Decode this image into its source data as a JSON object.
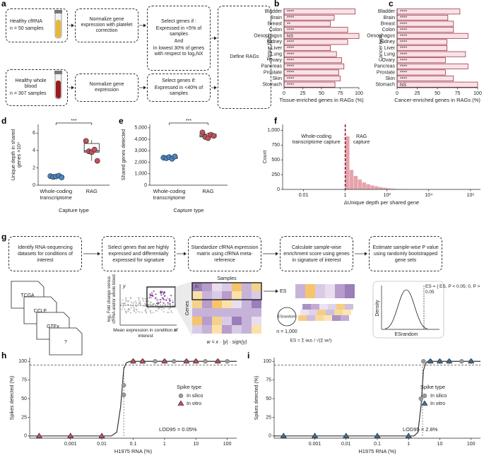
{
  "diagram_a": {
    "label": "a",
    "boxes": [
      {
        "lines": [
          "Healthy cfRNA",
          "n = 50 samples"
        ]
      },
      {
        "lines": [
          "Normalize gene expression with platelet correction"
        ]
      },
      {
        "lines": [
          "Select genes if :",
          "Expressed in <5% of samples",
          "And",
          "In lowest 30% of genes with respect to log₂NX"
        ]
      },
      {
        "lines": [
          "Define RAGs"
        ]
      },
      {
        "lines": [
          "Healthy whole blood",
          "n = 307 samples"
        ]
      },
      {
        "lines": [
          "Normalize gene expression"
        ]
      },
      {
        "lines": [
          "Select genes if:",
          "Expressed in <40% of samples"
        ]
      }
    ]
  },
  "diagram_g": {
    "label": "g",
    "steps": [
      "Identify RNA-sequencing datasets for conditions of interest",
      "Select genes that are highly expressed and differentially expressed for signature",
      "Standardize cfRNA expression matrix using cfRNA meta-reference",
      "Calculate sample-wise enrichment score using genes in signature of interest",
      "Estimate sample-wise P value using randomly bootstrapped gene sets"
    ],
    "datasets": [
      "TCGA",
      "CCLE",
      "GTEx",
      "?"
    ],
    "scatter_ylabel": "log₂ Fold change versus cfRNA and/or whole blood",
    "scatter_xlabel": "Mean expression in condition of interest",
    "y": "y",
    "x": "x",
    "samples": "Samples",
    "genes": "Genes",
    "zs": "zₛ",
    "weight": "w = x · |y| · sign(y)",
    "es": "ES",
    "es_random": "ESrandom",
    "n": "n = 1,000",
    "es_formula": "ES = Σ wᵢzᵢ / √(Σ wᵢ²)",
    "es_rule": "ES = { ES, P < 0.05; 0, P > 0.05",
    "density": "Density",
    "density_x": "ESrandom"
  },
  "chart_data": [
    {
      "label": "b",
      "type": "hbar",
      "categories": [
        "Bladder",
        "Brain",
        "Breast",
        "Colon",
        "Oesophagus",
        "Kidney",
        "Liver",
        "Lung",
        "Ovary",
        "Pancreas",
        "Prostate",
        "Skin",
        "Stomach"
      ],
      "values": [
        95,
        67,
        62,
        85,
        100,
        85,
        62,
        70,
        77,
        80,
        73,
        75,
        68
      ],
      "annotations": [
        "****",
        "****",
        "**",
        "****",
        "NS",
        "****",
        "****",
        "****",
        "****",
        "****",
        "****",
        "****",
        "****"
      ],
      "color": "#fbe1e6",
      "stroke": "#8c2233",
      "xlim": [
        0,
        100
      ],
      "xticks": [
        0,
        25,
        50,
        75,
        100
      ],
      "xlabel": "Tissue-enriched genes in RAGs (%)",
      "ylabel": "Tissue type"
    },
    {
      "label": "c",
      "type": "hbar",
      "categories": [
        "Bladder",
        "Brain",
        "Breast",
        "Colon",
        "Oesophagus",
        "Kidney",
        "Liver",
        "Lung",
        "Ovary",
        "Pancreas",
        "Prostate",
        "Skin",
        "Stomach"
      ],
      "values": [
        78,
        63,
        70,
        70,
        88,
        62,
        62,
        85,
        60,
        88,
        60,
        70,
        100
      ],
      "annotations": [
        "****",
        "****",
        "****",
        "****",
        "****",
        "****",
        "****",
        "****",
        "****",
        "****",
        "****",
        "****",
        "NS"
      ],
      "color": "#fbe1e6",
      "stroke": "#8c2233",
      "xlim": [
        0,
        100
      ],
      "xticks": [
        0,
        25,
        50,
        75,
        100
      ],
      "xlabel": "Cancer-enriched genes in RAGs (%)",
      "ylabel": "Cancer type"
    },
    {
      "label": "d",
      "type": "box",
      "categories": [
        "Whole-coding transcriptome",
        "RAG"
      ],
      "colors": [
        "#4a86c5",
        "#c4505c"
      ],
      "boxes": [
        {
          "whisker_low": 0.85,
          "q1": 0.92,
          "median": 1.0,
          "q3": 1.1,
          "whisker_high": 1.15,
          "points": [
            1.05,
            0.95,
            1.0,
            1.1,
            0.9
          ]
        },
        {
          "whisker_low": 2.8,
          "q1": 3.8,
          "median": 3.95,
          "q3": 4.8,
          "whisker_high": 5.2,
          "points": [
            5.1,
            3.9,
            3.8,
            4.1,
            2.8
          ]
        }
      ],
      "ylim": [
        0,
        7
      ],
      "yticks": [
        0,
        2,
        4,
        6
      ],
      "ylabel": "Unique depth in shared genes ×10⁴",
      "xlabel": "Capture type",
      "significance": "***"
    },
    {
      "label": "e",
      "type": "box",
      "categories": [
        "Whole-coding transcriptome",
        "RAG"
      ],
      "colors": [
        "#4a86c5",
        "#c4505c"
      ],
      "boxes": [
        {
          "whisker_low": 2300,
          "q1": 2330,
          "median": 2400,
          "q3": 2450,
          "whisker_high": 2500,
          "points": [
            2400,
            2350,
            2450,
            2300,
            2500
          ]
        },
        {
          "whisker_low": 4100,
          "q1": 4200,
          "median": 4300,
          "q3": 4450,
          "whisker_high": 4600,
          "points": [
            4600,
            4200,
            4100,
            4400,
            4300
          ]
        }
      ],
      "ylim": [
        0,
        5300
      ],
      "yticks": [
        0,
        {
          "value": 1000,
          "label": "1,000"
        },
        {
          "value": 2000,
          "label": "2,000"
        },
        {
          "value": 3000,
          "label": "3,000"
        },
        {
          "value": 4000,
          "label": "4,000"
        },
        {
          "value": 5000,
          "label": "5,000"
        }
      ],
      "ylabel": "Shared genes detected",
      "xlabel": "Capture type",
      "significance": "***"
    },
    {
      "label": "f",
      "type": "histogram",
      "log_x": true,
      "bins": [
        1,
        1.6,
        2.5,
        4,
        6.3,
        10,
        16,
        25,
        40,
        63,
        100,
        160,
        250,
        400,
        630,
        1000,
        1600,
        2500
      ],
      "counts": [
        900,
        330,
        230,
        170,
        120,
        90,
        70,
        55,
        40,
        30,
        20,
        15,
        10,
        7,
        5,
        3,
        2
      ],
      "color": "#e6a3ab",
      "ref_line": 1,
      "ref_color": "#8c2233",
      "xlim": [
        0.001,
        3000000
      ],
      "xticks": [
        0.01,
        1,
        {
          "value": 100,
          "label": "10²"
        },
        {
          "value": 10000,
          "label": "10⁴"
        },
        {
          "value": 1000000,
          "label": "10⁶"
        }
      ],
      "ylim": [
        0,
        1100
      ],
      "yticks": [
        0,
        250,
        500,
        750,
        {
          "value": 1000,
          "label": "1,000"
        }
      ],
      "xlabel": "ΔUnique depth per shared gene",
      "ylabel": "Count",
      "annotations": [
        "Whole-coding transcriptome capture",
        "RAG capture"
      ]
    },
    {
      "label": "h",
      "type": "line",
      "log_x": true,
      "xlim": [
        5e-05,
        200
      ],
      "xticks": [
        0.001,
        0.01,
        0.1,
        1,
        10,
        100
      ],
      "ylim": [
        -3,
        105
      ],
      "yticks": [
        0,
        25,
        50,
        75,
        100
      ],
      "xlabel": "H1975 RNA (%)",
      "ylabel": "Spikes detected (%)",
      "hline": 95,
      "vline": 0.05,
      "annotation": "LOD95 = 0.05%",
      "legend_title": "Spike type",
      "legend": "right",
      "fit": {
        "x": [
          5e-05,
          0.02,
          0.03,
          0.04,
          0.05,
          0.06,
          0.08,
          200
        ],
        "y": [
          0,
          0,
          5,
          40,
          90,
          98,
          100,
          100
        ]
      },
      "series": [
        {
          "name": "In silico",
          "color": "#9a9a9a",
          "marker": "circle",
          "x": [
            0.05,
            0.05,
            0.1,
            0.2,
            0.5,
            1,
            2,
            5,
            10,
            20,
            50,
            100
          ],
          "values": [
            55,
            68,
            100,
            100,
            100,
            100,
            100,
            100,
            100,
            100,
            100,
            100
          ]
        },
        {
          "name": "In vitro",
          "color": "#c4505c",
          "marker": "triangle",
          "x": [
            0.0001,
            0.001,
            0.01,
            0.1,
            0.2,
            1,
            5,
            10,
            50
          ],
          "values": [
            0,
            0,
            0,
            100,
            100,
            100,
            100,
            100,
            100
          ]
        }
      ]
    },
    {
      "label": "i",
      "type": "line",
      "log_x": true,
      "xlim": [
        5e-05,
        200
      ],
      "xticks": [
        0.001,
        0.01,
        0.1,
        1,
        10,
        100
      ],
      "ylim": [
        -3,
        105
      ],
      "yticks": [
        0,
        25,
        50,
        75,
        100
      ],
      "xlabel": "H1975 RNA (%)",
      "ylabel": "Spikes detected (%)",
      "hline": 95,
      "vline": 2.8,
      "annotation": "LOD95 = 2.8%",
      "legend_title": "Spike type",
      "legend": "right",
      "fit": {
        "x": [
          5e-05,
          1.5,
          2,
          2.5,
          3,
          3.5,
          4,
          200
        ],
        "y": [
          0,
          0,
          5,
          40,
          88,
          97,
          100,
          100
        ]
      },
      "series": [
        {
          "name": "In silico",
          "color": "#9a9a9a",
          "marker": "circle",
          "x": [
            2.5,
            3,
            5,
            10,
            20,
            50,
            100
          ],
          "values": [
            50,
            100,
            100,
            100,
            100,
            100,
            100
          ]
        },
        {
          "name": "In vitro",
          "color": "#3f6f95",
          "marker": "triangle",
          "x": [
            0.0001,
            0.001,
            0.01,
            0.1,
            1,
            5,
            10,
            20,
            100
          ],
          "values": [
            0,
            0,
            0,
            0,
            0,
            100,
            100,
            100,
            100
          ]
        }
      ]
    }
  ]
}
